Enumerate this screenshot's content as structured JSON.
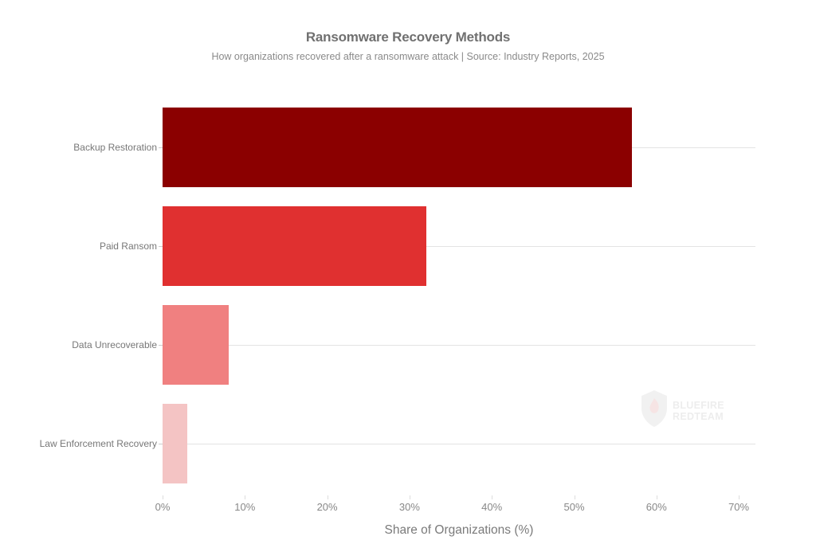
{
  "header": {
    "title": "Ransomware Recovery Methods",
    "subtitle": "How organizations recovered after a ransomware attack | Source: Industry Reports, 2025"
  },
  "axis": {
    "x_title": "Share of Organizations (%)",
    "x_ticks": [
      "0%",
      "10%",
      "20%",
      "30%",
      "40%",
      "50%",
      "60%",
      "70%"
    ]
  },
  "watermark": {
    "line1": "BLUEFIRE",
    "line2": "REDTEAM"
  },
  "colors": {
    "bar1": "#8b0000",
    "bar2": "#e03030",
    "bar3": "#f08080",
    "bar4": "#f4c4c4",
    "grid": "#e3e3e3"
  },
  "chart_data": {
    "type": "bar",
    "orientation": "horizontal",
    "title": "Ransomware Recovery Methods",
    "subtitle": "How organizations recovered after a ransomware attack | Source: Industry Reports, 2025",
    "categories": [
      "Backup Restoration",
      "Paid Ransom",
      "Data Unrecoverable",
      "Law Enforcement Recovery"
    ],
    "values": [
      57,
      32,
      8,
      3
    ],
    "colors": [
      "#8b0000",
      "#e03030",
      "#f08080",
      "#f4c4c4"
    ],
    "xlabel": "Share of Organizations (%)",
    "ylabel": "",
    "xlim": [
      0,
      72
    ],
    "x_ticks": [
      0,
      10,
      20,
      30,
      40,
      50,
      60,
      70
    ],
    "grid": "horizontal lines at category centers",
    "legend": "none"
  }
}
